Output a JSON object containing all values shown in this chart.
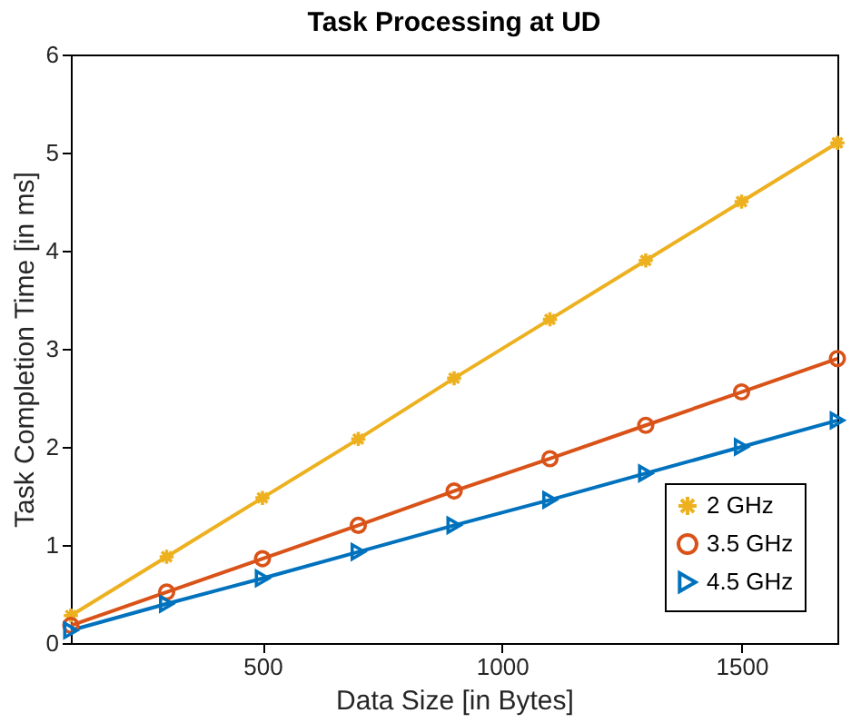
{
  "chart_data": {
    "type": "line",
    "title": "Task Processing at UD",
    "xlabel": "Data Size [in Bytes]",
    "ylabel": "Task Completion Time [in ms]",
    "x": [
      100,
      300,
      500,
      700,
      900,
      1100,
      1300,
      1500,
      1700
    ],
    "series": [
      {
        "name": "2 GHz",
        "color": "#edb120",
        "marker": "cross",
        "values": [
          0.28,
          0.88,
          1.48,
          2.08,
          2.7,
          3.3,
          3.9,
          4.5,
          5.1
        ]
      },
      {
        "name": "3.5 GHz",
        "color": "#d95319",
        "marker": "circle",
        "values": [
          0.18,
          0.52,
          0.86,
          1.2,
          1.55,
          1.88,
          2.22,
          2.56,
          2.9
        ]
      },
      {
        "name": "4.5 GHz",
        "color": "#0072bd",
        "marker": "triangle",
        "values": [
          0.13,
          0.4,
          0.66,
          0.93,
          1.2,
          1.46,
          1.73,
          2.0,
          2.27
        ]
      }
    ],
    "xlim": [
      100,
      1700
    ],
    "xticks": [
      500,
      1000,
      1500
    ],
    "ylim": [
      0,
      6
    ],
    "yticks": [
      0,
      1,
      2,
      3,
      4,
      5,
      6
    ],
    "grid": false,
    "legend": "bottom right",
    "line_style": "solid"
  }
}
